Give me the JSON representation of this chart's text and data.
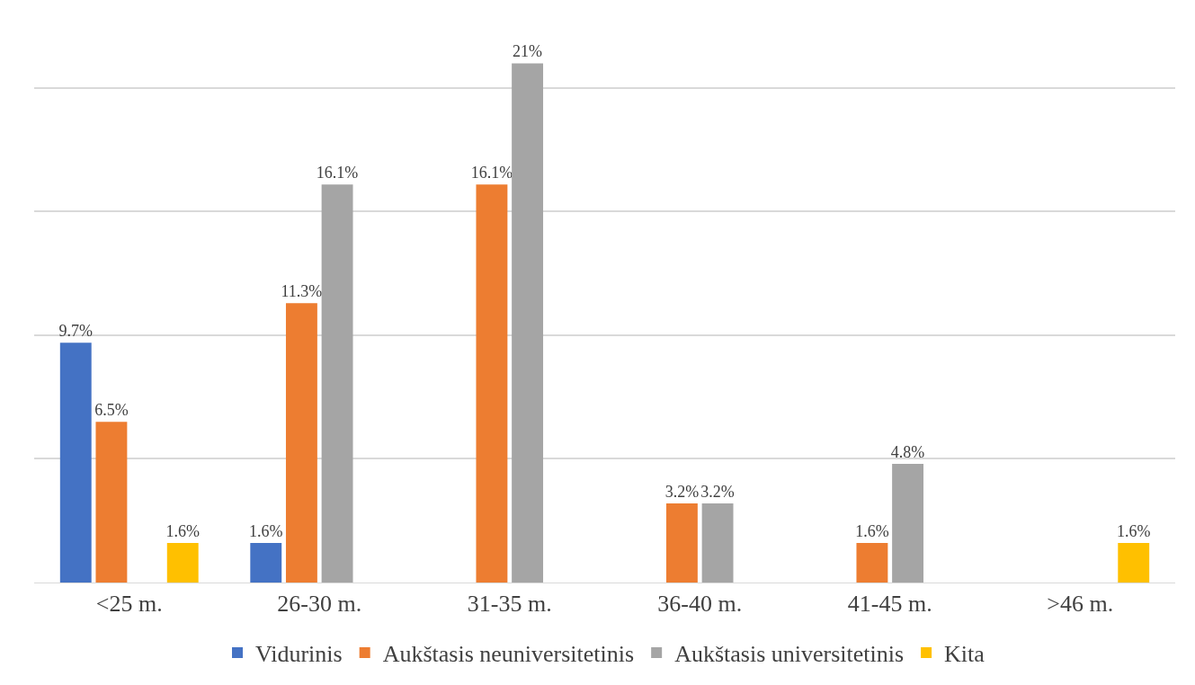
{
  "chart_data": {
    "type": "bar",
    "categories": [
      "<25 m.",
      "26-30 m.",
      "31-35 m.",
      "36-40 m.",
      "41-45 m.",
      ">46 m."
    ],
    "series": [
      {
        "name": "Vidurinis",
        "color": "#4472c4",
        "values": [
          9.7,
          1.6,
          null,
          null,
          null,
          null
        ],
        "value_labels": [
          "9.7%",
          "1.6%",
          null,
          null,
          null,
          null
        ]
      },
      {
        "name": "Aukštasis neuniversitetinis",
        "color": "#ed7d31",
        "values": [
          6.5,
          11.3,
          16.1,
          3.2,
          1.6,
          null
        ],
        "value_labels": [
          "6.5%",
          "11.3%",
          "16.1%",
          "3.2%",
          "1.6%",
          null
        ]
      },
      {
        "name": "Aukštasis universitetinis",
        "color": "#a5a5a5",
        "values": [
          null,
          16.1,
          21,
          3.2,
          4.8,
          null
        ],
        "value_labels": [
          null,
          "16.1%",
          "21%",
          "3.2%",
          "4.8%",
          null
        ]
      },
      {
        "name": "Kita",
        "color": "#ffc000",
        "values": [
          1.6,
          null,
          null,
          null,
          null,
          1.6
        ],
        "value_labels": [
          "1.6%",
          null,
          null,
          null,
          null,
          "1.6%"
        ]
      }
    ],
    "grid": "y",
    "legend": "bottom",
    "tick_labels": "x"
  }
}
